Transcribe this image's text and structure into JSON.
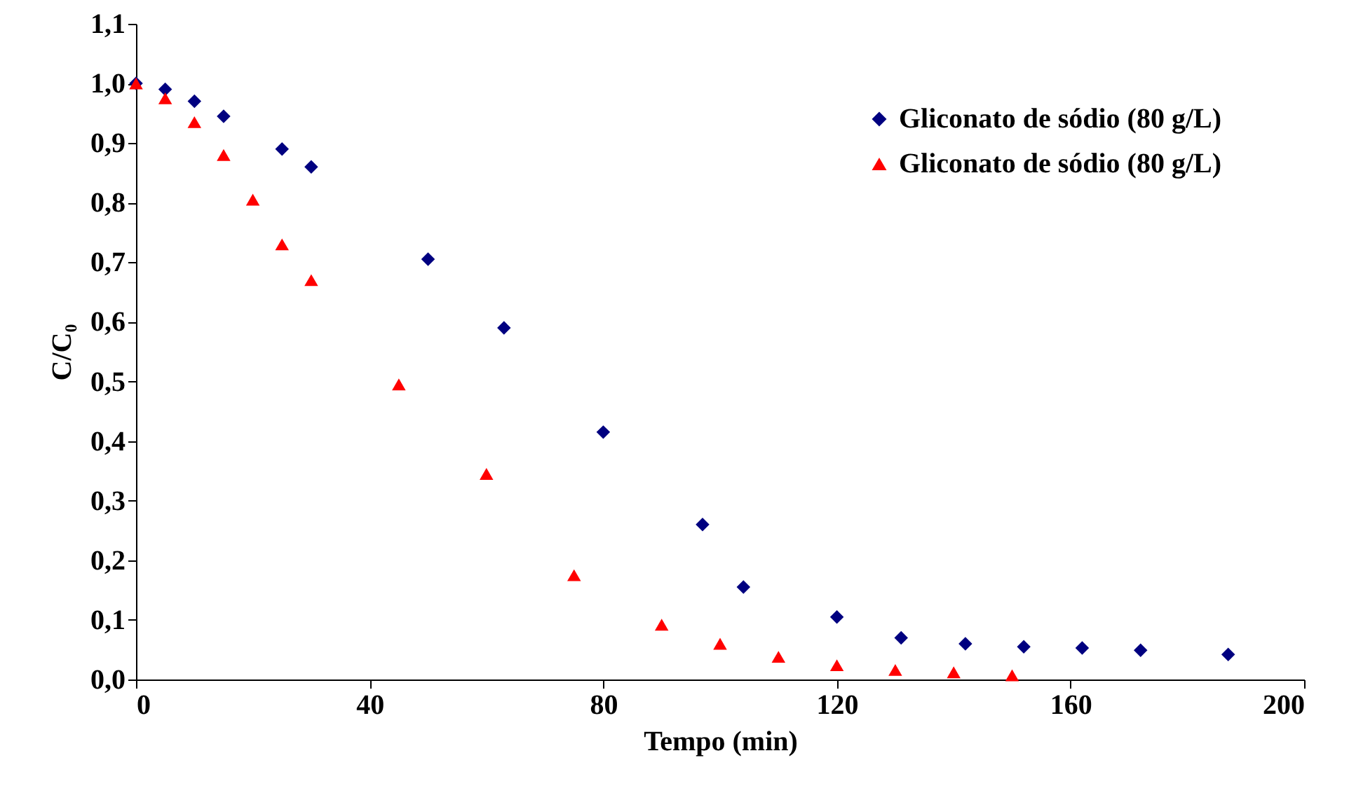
{
  "chart_data": {
    "type": "scatter",
    "xlabel": "Tempo (min)",
    "ylabel": "C/C₀",
    "xlim": [
      0,
      200
    ],
    "xticks": [
      0,
      40,
      80,
      120,
      160,
      200
    ],
    "ylim": [
      0,
      1.1
    ],
    "yticks": [
      {
        "value": 0,
        "label": "0,0"
      },
      {
        "value": 0.1,
        "label": "0,1"
      },
      {
        "value": 0.2,
        "label": "0,2"
      },
      {
        "value": 0.3,
        "label": "0,3"
      },
      {
        "value": 0.4,
        "label": "0,4"
      },
      {
        "value": 0.5,
        "label": "0,5"
      },
      {
        "value": 0.6,
        "label": "0,6"
      },
      {
        "value": 0.7,
        "label": "0,7"
      },
      {
        "value": 0.8,
        "label": "0,8"
      },
      {
        "value": 0.9,
        "label": "0,9"
      },
      {
        "value": 1.0,
        "label": "1,0"
      },
      {
        "value": 1.1,
        "label": "1,1"
      }
    ],
    "grid": false,
    "legend": "top right",
    "series": [
      {
        "name": "Gliconato de sódio (80 g/L)",
        "color": "#000080",
        "marker": "diamond",
        "x": [
          0,
          5,
          10,
          15,
          25,
          30,
          50,
          63,
          80,
          97,
          104,
          120,
          131,
          142,
          152,
          162,
          172,
          187
        ],
        "values": [
          1.0,
          0.99,
          0.97,
          0.945,
          0.89,
          0.86,
          0.705,
          0.59,
          0.415,
          0.26,
          0.155,
          0.105,
          0.07,
          0.06,
          0.055,
          0.053,
          0.049,
          0.042
        ]
      },
      {
        "name": "Gliconato de sódio (80 g/L)",
        "color": "#ff0000",
        "marker": "triangle",
        "x": [
          0,
          5,
          10,
          15,
          20,
          25,
          30,
          45,
          60,
          75,
          90,
          100,
          110,
          120,
          130,
          140,
          150
        ],
        "values": [
          1.0,
          0.975,
          0.935,
          0.88,
          0.805,
          0.73,
          0.67,
          0.495,
          0.345,
          0.175,
          0.092,
          0.06,
          0.038,
          0.024,
          0.016,
          0.012,
          0.007
        ]
      }
    ]
  }
}
